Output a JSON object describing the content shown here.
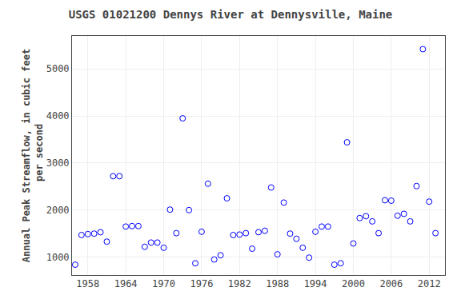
{
  "chart_data": {
    "type": "scatter",
    "title": "USGS 01021200 Dennys River at Dennysville, Maine",
    "ylabel": "Annual Peak Streamflow, in cubic feet\n per second",
    "x": [
      1956,
      1957,
      1958,
      1959,
      1960,
      1961,
      1962,
      1963,
      1964,
      1965,
      1966,
      1967,
      1968,
      1969,
      1970,
      1971,
      1972,
      1973,
      1974,
      1975,
      1976,
      1977,
      1978,
      1979,
      1980,
      1981,
      1982,
      1983,
      1984,
      1985,
      1986,
      1987,
      1988,
      1989,
      1990,
      1991,
      1992,
      1993,
      1994,
      1995,
      1996,
      1997,
      1998,
      1999,
      2000,
      2001,
      2002,
      2003,
      2004,
      2005,
      2006,
      2007,
      2008,
      2009,
      2010,
      2011,
      2012,
      2013
    ],
    "values": [
      840,
      1470,
      1490,
      1500,
      1530,
      1330,
      2720,
      2720,
      1650,
      1660,
      1660,
      1220,
      1310,
      1310,
      1200,
      2010,
      1510,
      3950,
      2000,
      870,
      1540,
      2560,
      950,
      1040,
      2250,
      1470,
      1480,
      1510,
      1180,
      1530,
      1560,
      2480,
      1060,
      2160,
      1500,
      1390,
      1200,
      990,
      1540,
      1650,
      1650,
      840,
      870,
      3440,
      1290,
      1830,
      1870,
      1760,
      1510,
      2210,
      2200,
      1880,
      1920,
      1760,
      2510,
      5420,
      2180,
      1510
    ],
    "color": "blue",
    "marker": "circle-open",
    "xlim": [
      1955.5,
      2014.5
    ],
    "xticks": [
      1958,
      1964,
      1970,
      1976,
      1982,
      1988,
      1994,
      2000,
      2006,
      2012
    ],
    "ylim": [
      620,
      5700
    ],
    "yticks": [
      1000,
      2000,
      3000,
      4000,
      5000
    ],
    "grid": true
  }
}
